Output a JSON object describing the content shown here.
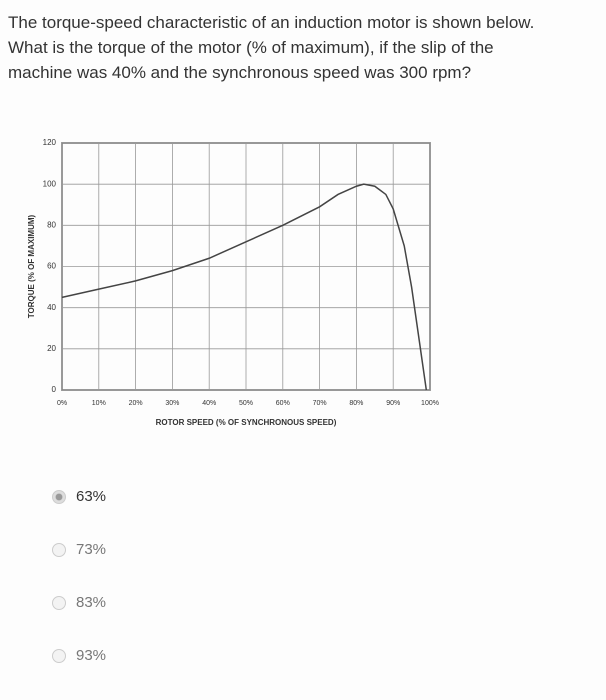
{
  "question": {
    "lines": [
      "The torque-speed characteristic of an induction motor is shown below.",
      "What is the torque of the motor (% of maximum), if the slip of the",
      "machine was 40% and the synchronous speed was 300 rpm?"
    ]
  },
  "chart_data": {
    "type": "line",
    "x_label": "ROTOR SPEED (% OF SYNCHRONOUS SPEED)",
    "y_label": "TORQUE (% OF MAXIMUM)",
    "x": [
      0,
      10,
      20,
      30,
      40,
      50,
      60,
      70,
      75,
      80,
      82,
      85,
      88,
      90,
      93,
      95,
      97,
      99
    ],
    "series": [
      {
        "color": "#444444",
        "values": [
          45,
          49,
          53,
          58,
          64,
          72,
          80,
          89,
          95,
          99,
          100,
          99,
          95,
          88,
          70,
          50,
          25,
          0
        ]
      }
    ],
    "xlim": [
      0,
      100
    ],
    "ylim": [
      0,
      120
    ],
    "xticks": [
      {
        "value": 0,
        "label": "0%"
      },
      {
        "value": 10,
        "label": "10%"
      },
      {
        "value": 20,
        "label": "20%"
      },
      {
        "value": 30,
        "label": "30%"
      },
      {
        "value": 40,
        "label": "40%"
      },
      {
        "value": 50,
        "label": "50%"
      },
      {
        "value": 60,
        "label": "60%"
      },
      {
        "value": 70,
        "label": "70%"
      },
      {
        "value": 80,
        "label": "80%"
      },
      {
        "value": 90,
        "label": "90%"
      },
      {
        "value": 100,
        "label": "100%"
      }
    ],
    "yticks": [
      0,
      20,
      40,
      60,
      80,
      100,
      120
    ],
    "grid": true
  },
  "options": [
    {
      "label": "63%",
      "selected": true
    },
    {
      "label": "73%",
      "selected": false
    },
    {
      "label": "83%",
      "selected": false
    },
    {
      "label": "93%",
      "selected": false
    }
  ]
}
